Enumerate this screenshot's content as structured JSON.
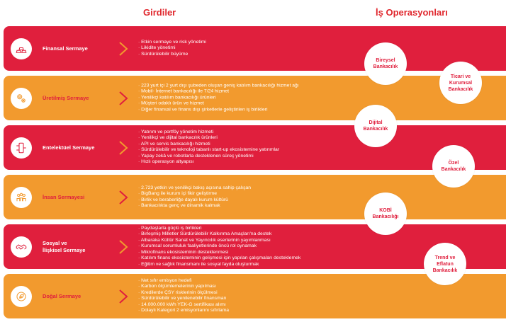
{
  "headers": {
    "inputs": "Girdiler",
    "operations": "İş Operasyonları"
  },
  "rows": [
    {
      "title": "Finansal Sermaye",
      "icon": "gold-bars-icon",
      "color": "red",
      "bullets": [
        "Etkin sermaye ve risk yönetimi",
        "Likidite yönetimi",
        "Sürdürülebilir büyüme"
      ]
    },
    {
      "title": "Üretilmiş Sermaye",
      "icon": "gears-icon",
      "color": "orange",
      "bullets": [
        "223 yurt içi 2 yurt dışı şubeden oluşan geniş katılım bankacılığı hizmet ağı",
        "Mobil- İnternet bankacılığı ile 7/24 hizmet",
        "Yenilikçi katılım bankacılığı ürünleri",
        "Müşteri odaklı ürün ve hizmet",
        "Diğer finansal ve finans dışı şirketlerle geliştirilen iş birlikleri"
      ]
    },
    {
      "title": "Entelektüel Sermaye",
      "icon": "mobile-network-icon",
      "color": "red",
      "bullets": [
        "Yatırım ve portföy yönetim hizmeti",
        "Yenilikçi ve dijital bankacılık ürünleri",
        "API ve servis bankacılığı hizmeti",
        "Sürdürülebilir ve teknoloji tabanlı start-up ekosistemine yatırımlar",
        "Yapay zekâ ve robotlarla desteklenen süreç yönetimi",
        "Hızlı operasyon altyapısı"
      ]
    },
    {
      "title": "İnsan Sermayesi",
      "icon": "people-icon",
      "color": "orange",
      "bullets": [
        "2.723 yetkin ve yenilikçi bakış açısına sahip çalışan",
        "BigBang ile kurum içi fikir geliştirme",
        "Birlik ve beraberliğe dayalı kurum kültürü",
        "Bankacılıkta genç ve dinamik kalmak"
      ]
    },
    {
      "title": "Sosyal ve\nİlişkisel Sermaye",
      "icon": "handshake-icon",
      "color": "red",
      "bullets": [
        "Paydaşlarla güçlü iş birlikleri",
        "Birleşmiş Milletler Sürdürülebilir Kalkınma Amaçları'na destek",
        "Albaraka Kültür Sanat ve Yayıncılık eserlerinin yayımlanması",
        "Kurumsal sorumluluk faaliyetlerinde öncü rol oynamak",
        "Mikrofinans ekosisteminin desteklenmesi",
        "Katılım finans ekosisteminin gelişmesi için yapılan çalışmaları desteklemek",
        "Eğitim ve sağlık finansmanı ile sosyal fayda oluşturmak"
      ]
    },
    {
      "title": "Doğal Sermaye",
      "icon": "leaf-globe-icon",
      "color": "orange",
      "bullets": [
        "Net sıfır emisyon hedefi",
        "Karbon ölçümlemelerinin yapılması",
        "Kredilerde ÇSY risklerinin ölçülmesi",
        "Sürdürülebilir ve yenilenebilir finansman",
        "14.000.000 kWh YEK-G sertifikası alımı",
        "Dolaylı Kategori 2 emisyonlarını sıfırlama"
      ]
    }
  ],
  "operations": [
    "Bireysel\nBankacılık",
    "Ticari ve\nKurumsal\nBankacılık",
    "Dijital\nBankacılık",
    "Özel\nBankacılık",
    "KOBİ\nBankacılığı",
    "Trend ve\nEflatun\nBankacılık"
  ],
  "colors": {
    "red": "#e01f3d",
    "orange": "#f29a2e"
  }
}
